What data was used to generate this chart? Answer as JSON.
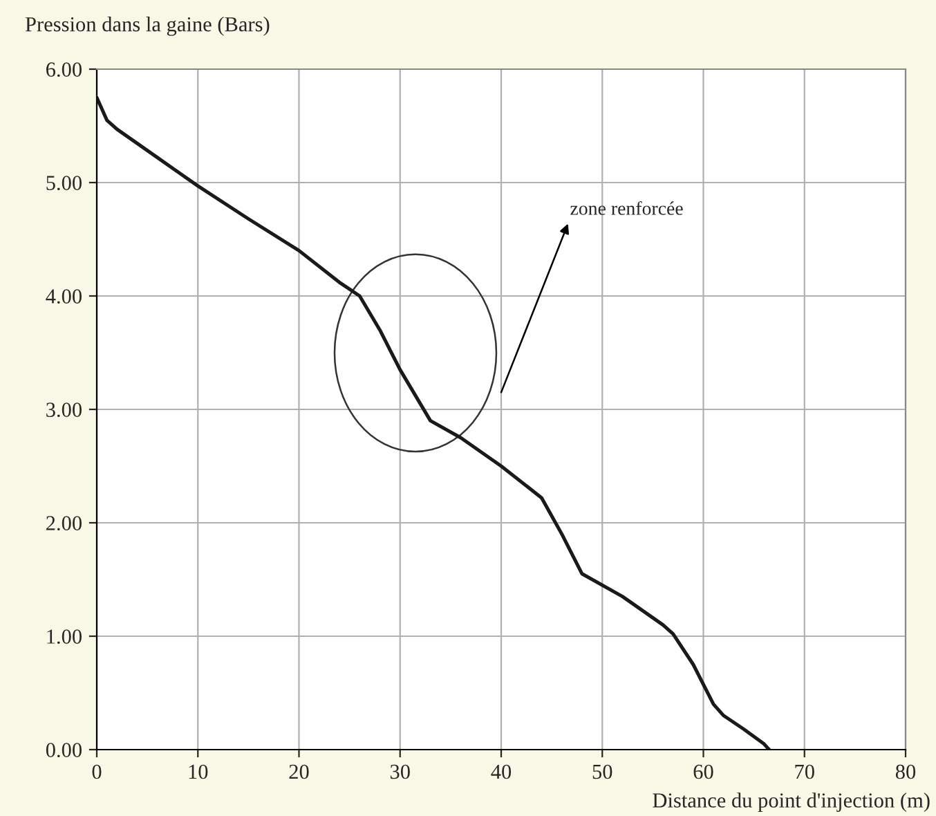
{
  "chart_data": {
    "type": "line",
    "ylabel": "Pression dans la gaine (Bars)",
    "xlabel": "Distance du point d'injection (m)",
    "x": [
      0,
      1,
      2,
      6,
      10,
      15,
      20,
      24,
      26,
      28,
      30,
      33,
      36,
      40,
      44,
      46,
      48,
      52,
      56,
      57,
      59,
      61,
      62,
      64,
      66,
      66.5
    ],
    "series": [
      {
        "color": "#1a1a1a",
        "values": [
          5.75,
          5.55,
          5.47,
          5.22,
          4.97,
          4.68,
          4.4,
          4.12,
          4.0,
          3.7,
          3.35,
          2.9,
          2.75,
          2.5,
          2.22,
          1.9,
          1.55,
          1.35,
          1.1,
          1.02,
          0.75,
          0.4,
          0.3,
          0.18,
          0.05,
          0
        ]
      }
    ],
    "xlim": [
      0,
      80
    ],
    "xticks": [
      0,
      10,
      20,
      30,
      40,
      50,
      60,
      70,
      80
    ],
    "ylim": [
      0,
      6
    ],
    "yticks": [
      {
        "value": 0,
        "label": "0.00"
      },
      {
        "value": 1,
        "label": "1.00"
      },
      {
        "value": 2,
        "label": "2.00"
      },
      {
        "value": 3,
        "label": "3.00"
      },
      {
        "value": 4,
        "label": "4.00"
      },
      {
        "value": 5,
        "label": "5.00"
      },
      {
        "value": 6,
        "label": "6.00"
      }
    ],
    "grid": true,
    "marker": "none",
    "line_style": "solid",
    "annotations": [
      "zone renforcée"
    ]
  }
}
